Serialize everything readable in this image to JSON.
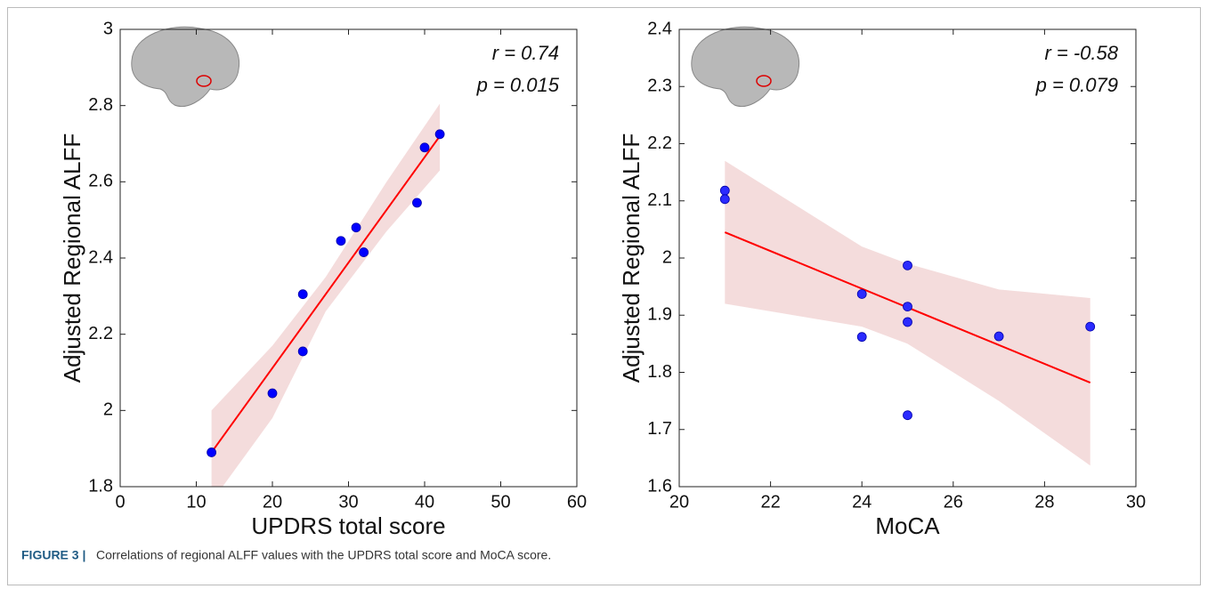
{
  "chart_data": [
    {
      "type": "scatter",
      "x_label": "UPDRS total score",
      "y_label": "Adjusted Regional ALFF",
      "xlim": [
        0,
        60
      ],
      "xticks": [
        0,
        10,
        20,
        30,
        40,
        50,
        60
      ],
      "ylim": [
        1.8,
        3
      ],
      "yticks": [
        1.8,
        2,
        2.2,
        2.4,
        2.6,
        2.8,
        3
      ],
      "x": [
        12,
        20,
        24,
        24,
        29,
        31,
        32,
        39,
        40,
        42
      ],
      "y": [
        1.89,
        2.045,
        2.305,
        2.155,
        2.445,
        2.48,
        2.415,
        2.545,
        2.69,
        2.725
      ],
      "color": "#0000ff",
      "fit": {
        "x": [
          12,
          42
        ],
        "y": [
          1.89,
          2.72
        ],
        "color": "#ff0000"
      },
      "band": {
        "x": [
          12,
          20,
          27,
          35,
          42
        ],
        "upper": [
          2.0,
          2.17,
          2.35,
          2.6,
          2.805
        ],
        "lower": [
          1.76,
          1.98,
          2.26,
          2.47,
          2.63
        ],
        "color": "#f4dcdc"
      },
      "annotations": [
        "r = 0.74",
        "p = 0.015"
      ]
    },
    {
      "type": "scatter",
      "x_label": "MoCA",
      "y_label": "Adjusted Regional ALFF",
      "xlim": [
        20,
        30
      ],
      "xticks": [
        20,
        22,
        24,
        26,
        28,
        30
      ],
      "ylim": [
        1.6,
        2.4
      ],
      "yticks": [
        1.6,
        1.7,
        1.8,
        1.9,
        2,
        2.1,
        2.2,
        2.3,
        2.4
      ],
      "x": [
        21,
        21,
        24,
        24,
        25,
        25,
        25,
        25,
        27,
        29
      ],
      "y": [
        2.118,
        2.103,
        1.937,
        1.862,
        1.987,
        1.915,
        1.888,
        1.725,
        1.863,
        1.88
      ],
      "color": "#2b2bff",
      "fit": {
        "x": [
          21,
          29
        ],
        "y": [
          2.045,
          1.782
        ],
        "color": "#ff0000"
      },
      "band": {
        "x": [
          21,
          24,
          25,
          27,
          29
        ],
        "upper": [
          2.17,
          2.02,
          1.99,
          1.945,
          1.93
        ],
        "lower": [
          1.92,
          1.88,
          1.85,
          1.75,
          1.637
        ],
        "color": "#f4dcdc"
      },
      "annotations": [
        "r = -0.58",
        "p = 0.079"
      ]
    }
  ],
  "caption": {
    "label": "FIGURE 3 |",
    "text": "Correlations of regional ALFF values with the UPDRS total score and MoCA score."
  }
}
